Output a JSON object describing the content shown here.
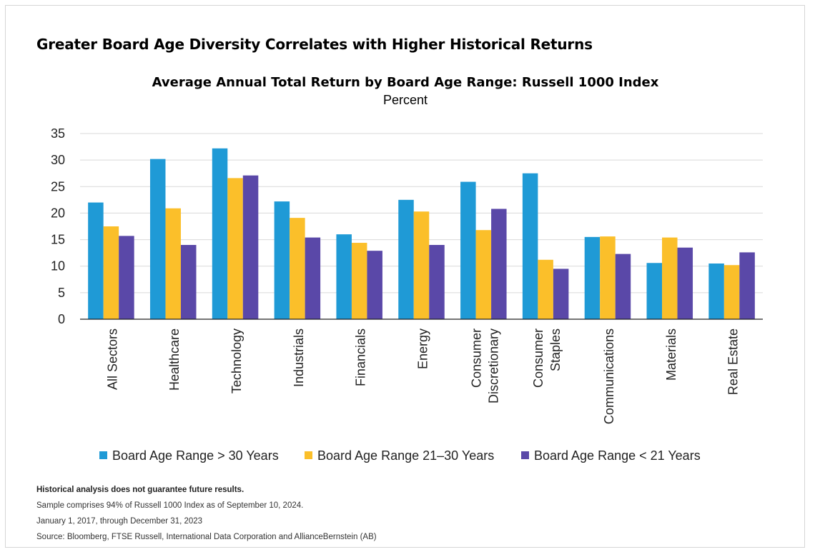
{
  "headline": "Greater Board Age Diversity Correlates with Higher Historical Returns",
  "notes": [
    "Historical analysis does not guarantee future results.",
    "Sample comprises 94% of Russell 1000 Index as of September 10, 2024.",
    "January 1, 2017, through December 31, 2023",
    "Source: Bloomberg, FTSE Russell, International Data Corporation and AllianceBernstein (AB)"
  ],
  "chart_data": {
    "type": "bar",
    "title": "Average Annual Total Return by Board Age Range: Russell 1000 Index",
    "subtitle": "Percent",
    "categories": [
      [
        "All Sectors"
      ],
      [
        "Healthcare"
      ],
      [
        "Technology"
      ],
      [
        "Industrials"
      ],
      [
        "Financials"
      ],
      [
        "Energy"
      ],
      [
        "Consumer",
        "Discretionary"
      ],
      [
        "Consumer",
        "Staples"
      ],
      [
        "Communications"
      ],
      [
        "Materials"
      ],
      [
        "Real Estate"
      ]
    ],
    "series": [
      {
        "name": "Board Age Range > 30 Years",
        "color": "#1f9ad6",
        "values": [
          22.0,
          30.2,
          32.2,
          22.2,
          16.0,
          22.5,
          25.9,
          27.5,
          15.5,
          10.6,
          10.5
        ]
      },
      {
        "name": "Board Age Range 21–30 Years",
        "color": "#fbbf2a",
        "values": [
          17.5,
          20.9,
          26.6,
          19.1,
          14.4,
          20.3,
          16.8,
          11.2,
          15.6,
          15.4,
          10.2
        ]
      },
      {
        "name": "Board Age Range < 21 Years",
        "color": "#5a48a8",
        "values": [
          15.7,
          14.0,
          27.1,
          15.4,
          12.9,
          14.0,
          20.8,
          9.5,
          12.3,
          13.5,
          12.6
        ]
      }
    ],
    "yticks": [
      0,
      5,
      10,
      15,
      20,
      25,
      30,
      35
    ],
    "ylim": [
      0,
      35
    ],
    "grid": true,
    "legend_position": "bottom"
  }
}
